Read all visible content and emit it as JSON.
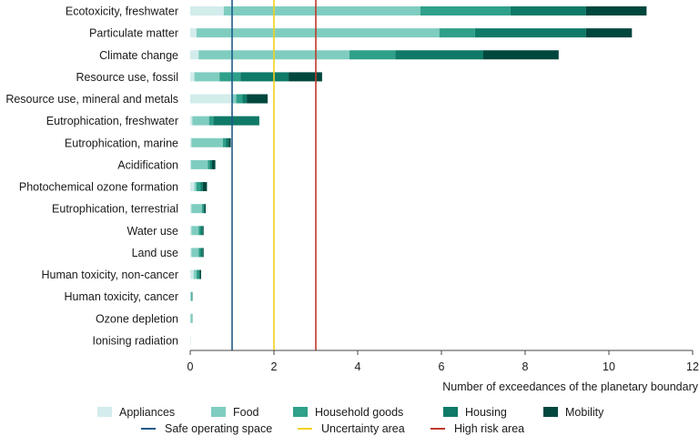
{
  "chart_data": {
    "type": "bar",
    "orientation": "horizontal",
    "stacked": true,
    "xlabel": "Number of exceedances of the planetary boundary",
    "ylabel": "",
    "xlim": [
      0,
      12
    ],
    "xticks": [
      0,
      2,
      4,
      6,
      8,
      10,
      12
    ],
    "grid": false,
    "legend_position": "bottom",
    "categories": [
      "Ecotoxicity, freshwater",
      "Particulate matter",
      "Climate change",
      "Resource use, fossil",
      "Resource use, mineral and metals",
      "Eutrophication, freshwater",
      "Eutrophication, marine",
      "Acidification",
      "Photochemical ozone formation",
      "Eutrophication, terrestrial",
      "Water use",
      "Land use",
      "Human toxicity, non-cancer",
      "Human toxicity, cancer",
      "Ozone depletion",
      "Ionising radiation"
    ],
    "series": [
      {
        "name": "Appliances",
        "color": "#d3ecec",
        "values": [
          0.8,
          0.15,
          0.2,
          0.1,
          1.0,
          0.05,
          0.03,
          0.02,
          0.1,
          0.03,
          0.03,
          0.03,
          0.08,
          0.01,
          0.01,
          0.01
        ]
      },
      {
        "name": "Food",
        "color": "#7fcdc0",
        "values": [
          4.7,
          5.8,
          3.6,
          0.6,
          0.1,
          0.4,
          0.75,
          0.4,
          0.05,
          0.25,
          0.17,
          0.17,
          0.07,
          0.02,
          0.03,
          0.0
        ]
      },
      {
        "name": "Household goods",
        "color": "#2fa08a",
        "values": [
          2.15,
          0.85,
          1.1,
          0.5,
          0.15,
          0.1,
          0.07,
          0.05,
          0.1,
          0.03,
          0.05,
          0.05,
          0.05,
          0.01,
          0.01,
          0.0
        ]
      },
      {
        "name": "Housing",
        "color": "#0f7a68",
        "values": [
          1.8,
          2.65,
          2.1,
          1.15,
          0.1,
          1.1,
          0.07,
          0.05,
          0.05,
          0.03,
          0.05,
          0.05,
          0.03,
          0.01,
          0.0,
          0.0
        ]
      },
      {
        "name": "Mobility",
        "color": "#00473e",
        "values": [
          1.45,
          1.1,
          1.8,
          0.8,
          0.5,
          0.0,
          0.05,
          0.08,
          0.1,
          0.03,
          0.02,
          0.02,
          0.03,
          0.0,
          0.0,
          0.0
        ]
      }
    ],
    "reference_lines": [
      {
        "name": "Safe operating space",
        "value": 1,
        "color": "#1d5a8a"
      },
      {
        "name": "Uncertainty area",
        "value": 2,
        "color": "#f2d21b"
      },
      {
        "name": "High risk area",
        "value": 3,
        "color": "#c0392b"
      }
    ]
  }
}
